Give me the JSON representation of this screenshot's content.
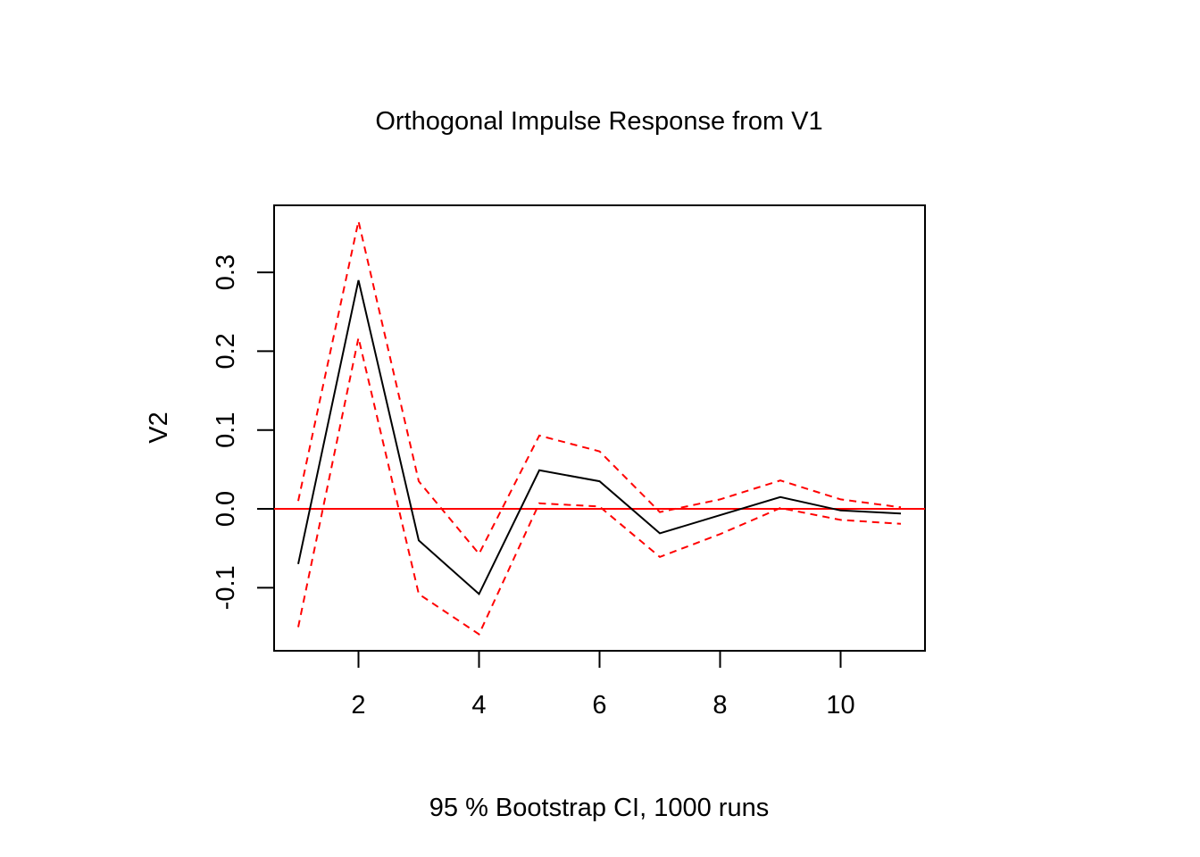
{
  "chart_data": {
    "type": "line",
    "title": "Orthogonal Impulse Response from V1",
    "xlabel": "95 % Bootstrap CI,  1000 runs",
    "ylabel": "V2",
    "xlim": [
      0.6,
      11.4
    ],
    "ylim": [
      -0.18,
      0.385
    ],
    "xticks": [
      2,
      4,
      6,
      8,
      10
    ],
    "xtick_labels": [
      "2",
      "4",
      "6",
      "8",
      "10"
    ],
    "yticks": [
      -0.1,
      0.0,
      0.1,
      0.2,
      0.3
    ],
    "ytick_labels": [
      "-0.1",
      "0.0",
      "0.1",
      "0.2",
      "0.3"
    ],
    "x": [
      1,
      2,
      3,
      4,
      5,
      6,
      7,
      8,
      9,
      10,
      11
    ],
    "series": [
      {
        "role": "response",
        "color": "#000000",
        "dashed": false,
        "values": [
          -0.07,
          0.29,
          -0.04,
          -0.108,
          0.049,
          0.035,
          -0.031,
          -0.008,
          0.015,
          -0.002,
          -0.006
        ]
      },
      {
        "role": "upper",
        "color": "#ff0000",
        "dashed": true,
        "values": [
          0.01,
          0.365,
          0.035,
          -0.057,
          0.093,
          0.073,
          -0.004,
          0.012,
          0.036,
          0.012,
          0.002
        ]
      },
      {
        "role": "lower",
        "color": "#ff0000",
        "dashed": true,
        "values": [
          -0.15,
          0.217,
          -0.108,
          -0.159,
          0.007,
          0.003,
          -0.061,
          -0.032,
          0.001,
          -0.014,
          -0.019
        ]
      }
    ],
    "hline": {
      "y": 0.0,
      "color": "#ff0000"
    },
    "grid": false,
    "legend": "none"
  }
}
